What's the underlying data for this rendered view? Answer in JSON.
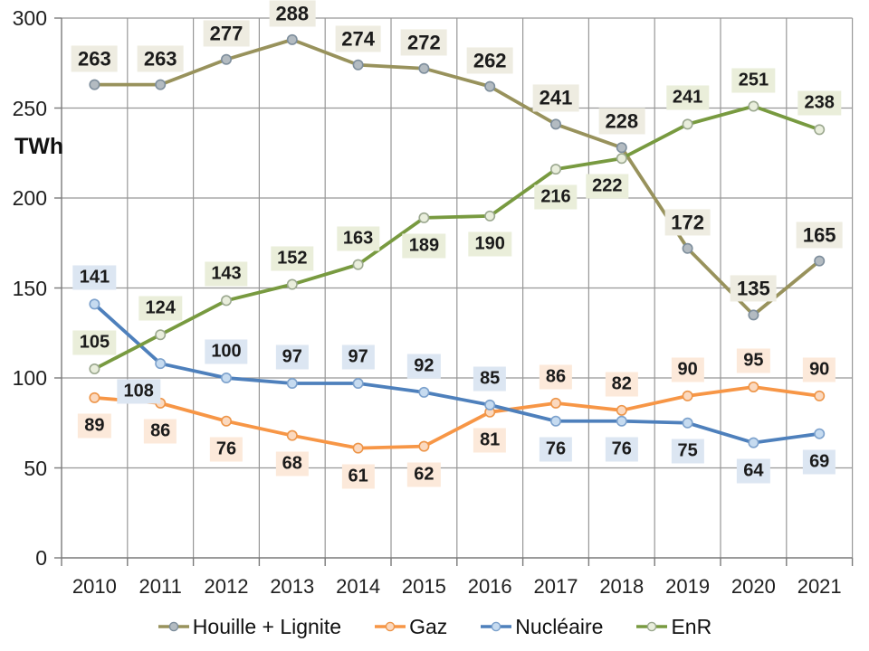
{
  "chart_data": {
    "type": "line",
    "title": "",
    "ylabel": "TWh",
    "xlabel": "",
    "ylim": [
      0,
      300
    ],
    "y_ticks": [
      0,
      50,
      100,
      150,
      200,
      250,
      300
    ],
    "grid": true,
    "legend_position": "bottom",
    "categories": [
      "2010",
      "2011",
      "2012",
      "2013",
      "2014",
      "2015",
      "2016",
      "2017",
      "2018",
      "2019",
      "2020",
      "2021"
    ],
    "series": [
      {
        "name": "Houille + Lignite",
        "slug": "houille-lignite",
        "color": "#98925C",
        "marker_fill": "#B3BBC1",
        "marker_stroke": "#7E8E9C",
        "label_bg": "#EEECE1",
        "label_font_px": 22,
        "values": [
          263,
          263,
          277,
          288,
          274,
          272,
          262,
          241,
          228,
          172,
          135,
          165
        ],
        "label_side": [
          "above",
          "above",
          "above",
          "above",
          "above",
          "above",
          "above",
          "above",
          "above",
          "above",
          "above",
          "above"
        ],
        "label_dx": [
          0,
          0,
          0,
          0,
          0,
          0,
          0,
          0,
          0,
          0,
          0,
          0
        ]
      },
      {
        "name": "Gaz",
        "slug": "gaz",
        "color": "#F79646",
        "marker_fill": "#FBD9BF",
        "marker_stroke": "#ED9549",
        "label_bg": "#FCE9DA",
        "label_font_px": 20,
        "values": [
          89,
          86,
          76,
          68,
          61,
          62,
          81,
          86,
          82,
          90,
          95,
          90
        ],
        "label_side": [
          "below",
          "below",
          "below",
          "below",
          "below",
          "below",
          "below",
          "above",
          "above",
          "above",
          "above",
          "above"
        ],
        "label_dx": [
          0,
          0,
          0,
          0,
          0,
          0,
          0,
          0,
          0,
          0,
          0,
          0
        ]
      },
      {
        "name": "Nucléaire",
        "slug": "nucleaire",
        "color": "#4E80BC",
        "marker_fill": "#C6DBF0",
        "marker_stroke": "#7CA1CC",
        "label_bg": "#DCE6F2",
        "label_font_px": 20,
        "values": [
          141,
          108,
          100,
          97,
          97,
          92,
          85,
          76,
          76,
          75,
          64,
          69
        ],
        "label_side": [
          "above",
          "below",
          "above",
          "above",
          "above",
          "above",
          "above",
          "below",
          "below",
          "below",
          "below",
          "below"
        ],
        "label_dx": [
          0,
          -24,
          0,
          0,
          0,
          0,
          0,
          0,
          0,
          0,
          0,
          0
        ]
      },
      {
        "name": "EnR",
        "slug": "enr",
        "color": "#789A40",
        "marker_fill": "#E9EEDC",
        "marker_stroke": "#9BA88F",
        "label_bg": "#EAEEDA",
        "label_font_px": 20,
        "values": [
          105,
          124,
          143,
          152,
          163,
          189,
          190,
          216,
          222,
          241,
          251,
          238
        ],
        "label_side": [
          "above",
          "above",
          "above",
          "above",
          "above",
          "below",
          "below",
          "below",
          "below",
          "above",
          "above",
          "above"
        ],
        "label_dx": [
          0,
          0,
          0,
          0,
          0,
          0,
          0,
          0,
          -16,
          0,
          0,
          0
        ]
      }
    ],
    "colors": {
      "gridline": "#979797",
      "axis": "#7A7A7A",
      "label_text": "#1B1B1B",
      "background": "#FFFFFF"
    }
  }
}
